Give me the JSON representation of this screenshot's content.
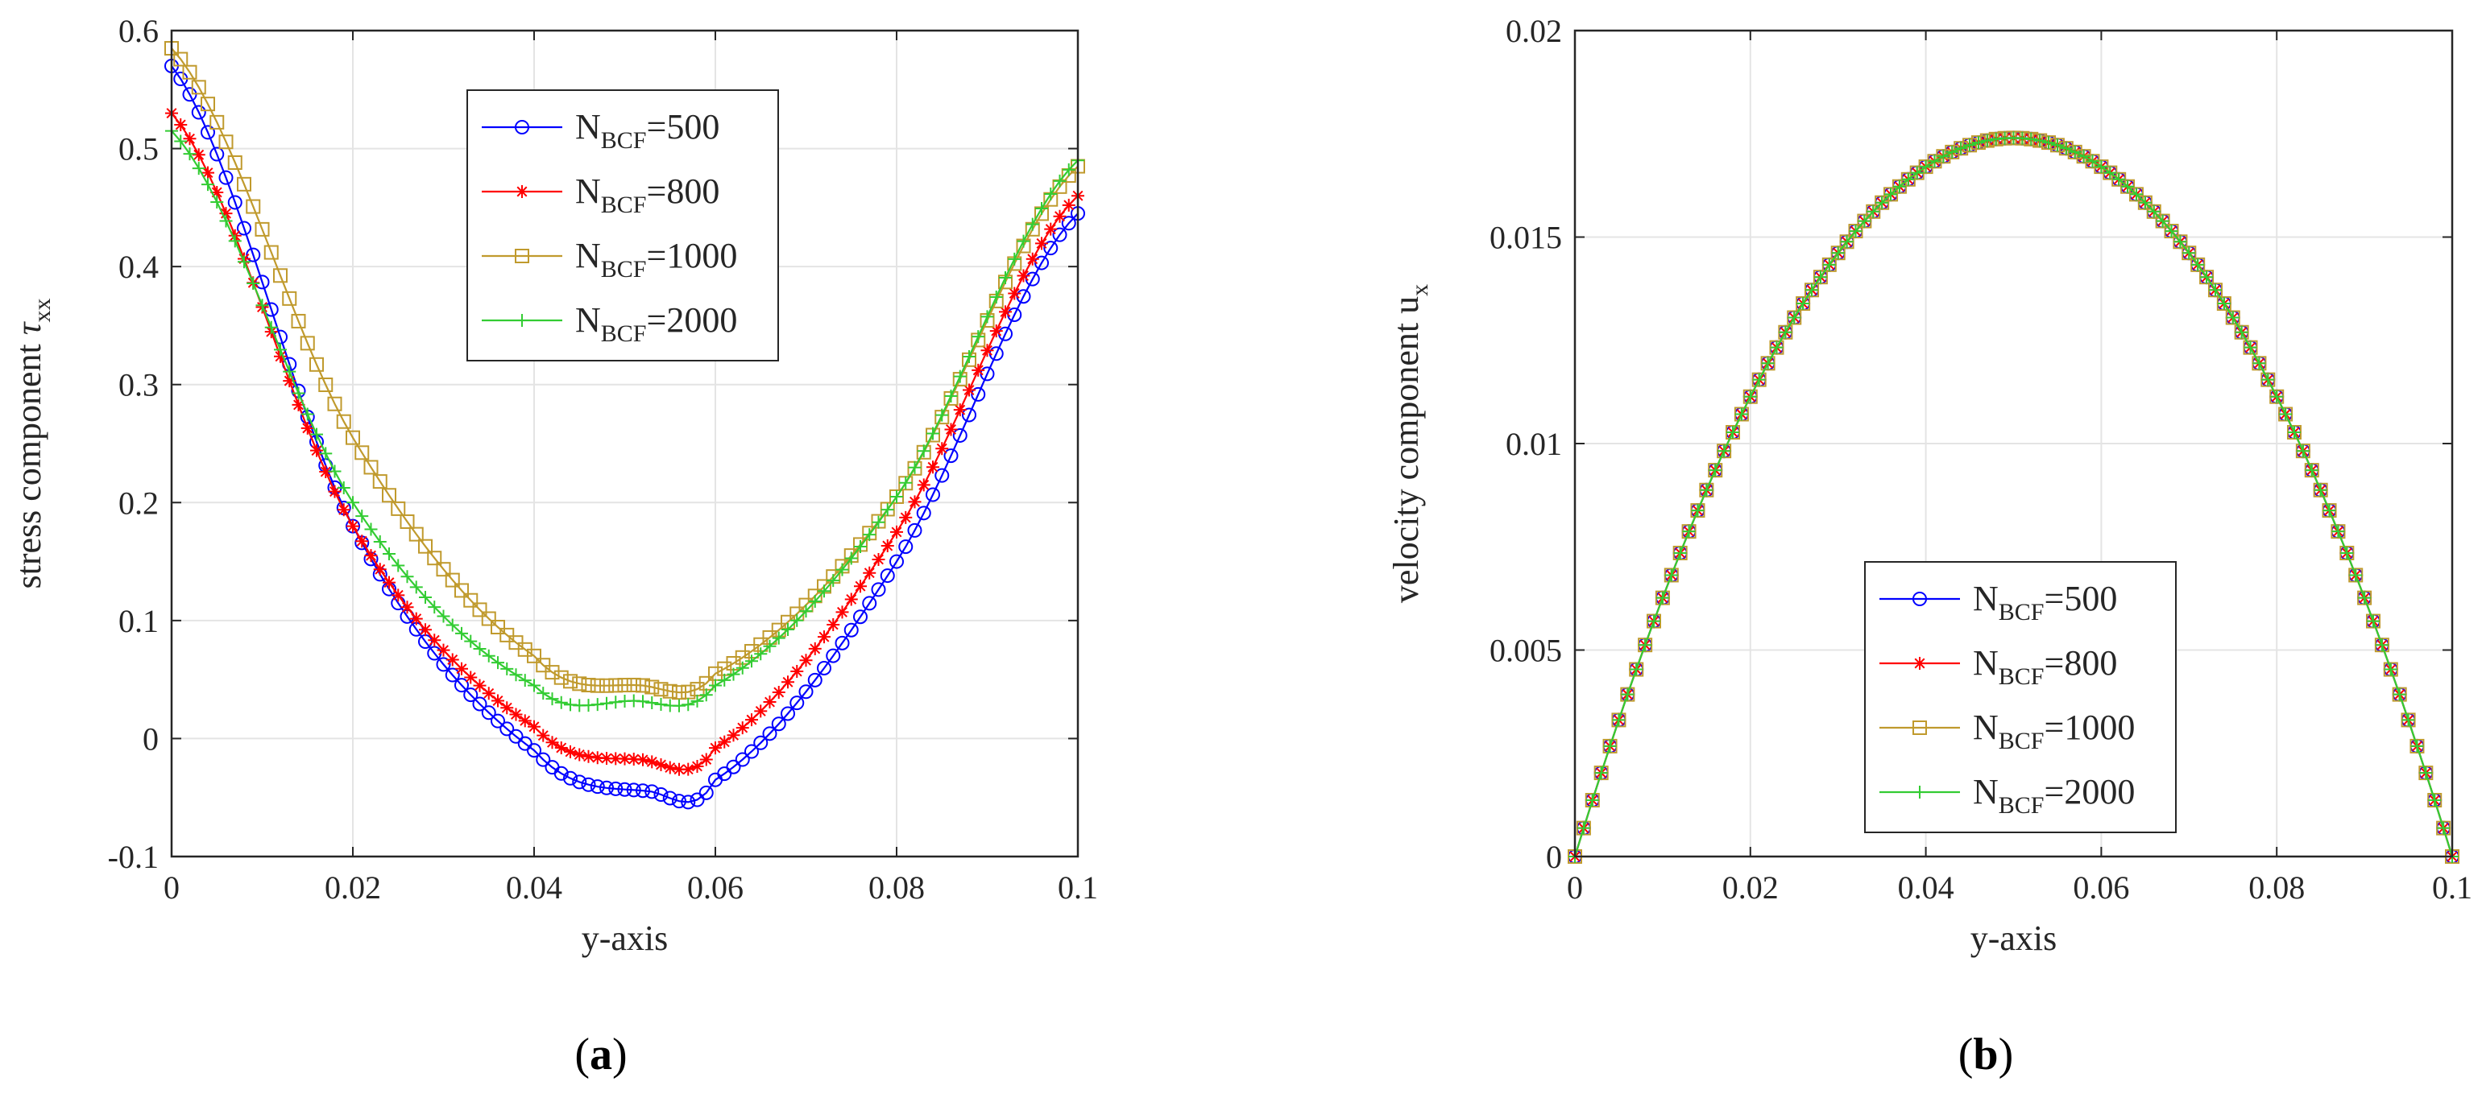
{
  "chart_data": [
    {
      "type": "line",
      "panel_label": "(a)",
      "xlabel": "y-axis",
      "ylabel": "stress component ",
      "ylabel_symbol": "τ",
      "ylabel_subscript": "xx",
      "xlim": [
        0,
        0.1
      ],
      "ylim": [
        -0.1,
        0.6
      ],
      "xticks": [
        0,
        0.02,
        0.04,
        0.06,
        0.08,
        0.1
      ],
      "xtick_labels": [
        "0",
        "0.02",
        "0.04",
        "0.06",
        "0.08",
        "0.1"
      ],
      "yticks": [
        -0.1,
        0,
        0.1,
        0.2,
        0.3,
        0.4,
        0.5,
        0.6
      ],
      "ytick_labels": [
        "-0.1",
        "0",
        "0.1",
        "0.2",
        "0.3",
        "0.4",
        "0.5",
        "0.6"
      ],
      "grid": true,
      "legend_position": "top-center",
      "series": [
        {
          "name": "N",
          "name_sub": "BCF",
          "name_suffix": "=500",
          "color": "#0000ff",
          "marker": "circle",
          "ymin_at": 0.053,
          "values_at": {
            "0": 0.57,
            "0.02": 0.18,
            "0.04": -0.01,
            "0.053": -0.045,
            "0.06": -0.035,
            "0.08": 0.15,
            "0.1": 0.445
          }
        },
        {
          "name": "N",
          "name_sub": "BCF",
          "name_suffix": "=800",
          "color": "#ff0000",
          "marker": "asterisk",
          "ymin_at": 0.052,
          "values_at": {
            "0": 0.53,
            "0.02": 0.18,
            "0.04": 0.01,
            "0.052": -0.018,
            "0.06": -0.008,
            "0.08": 0.175,
            "0.1": 0.46
          }
        },
        {
          "name": "N",
          "name_sub": "BCF",
          "name_suffix": "=1000",
          "color": "#c09a2d",
          "marker": "square",
          "ymin_at": 0.052,
          "values_at": {
            "0": 0.585,
            "0.02": 0.255,
            "0.04": 0.07,
            "0.052": 0.045,
            "0.06": 0.055,
            "0.08": 0.205,
            "0.1": 0.485
          }
        },
        {
          "name": "N",
          "name_sub": "BCF",
          "name_suffix": "=2000",
          "color": "#33cc33",
          "marker": "plus",
          "ymin_at": 0.051,
          "values_at": {
            "0": 0.515,
            "0.02": 0.2,
            "0.04": 0.045,
            "0.051": 0.032,
            "0.06": 0.045,
            "0.08": 0.205,
            "0.1": 0.49
          }
        }
      ]
    },
    {
      "type": "line",
      "panel_label": "(b)",
      "xlabel": "y-axis",
      "ylabel": "velocity component u",
      "ylabel_subscript": "x",
      "xlim": [
        0,
        0.1
      ],
      "ylim": [
        0,
        0.02
      ],
      "xticks": [
        0,
        0.02,
        0.04,
        0.06,
        0.08,
        0.1
      ],
      "xtick_labels": [
        "0",
        "0.02",
        "0.04",
        "0.06",
        "0.08",
        "0.1"
      ],
      "yticks": [
        0,
        0.005,
        0.01,
        0.015,
        0.02
      ],
      "ytick_labels": [
        "0",
        "0.005",
        "0.01",
        "0.015",
        "0.02"
      ],
      "grid": true,
      "legend_position": "bottom-center",
      "profile": "parabolic",
      "peak_x": 0.05,
      "peak_y": 0.0174,
      "series": [
        {
          "name": "N",
          "name_sub": "BCF",
          "name_suffix": "=500",
          "color": "#0000ff",
          "marker": "circle"
        },
        {
          "name": "N",
          "name_sub": "BCF",
          "name_suffix": "=800",
          "color": "#ff0000",
          "marker": "asterisk"
        },
        {
          "name": "N",
          "name_sub": "BCF",
          "name_suffix": "=1000",
          "color": "#c09a2d",
          "marker": "square"
        },
        {
          "name": "N",
          "name_sub": "BCF",
          "name_suffix": "=2000",
          "color": "#33cc33",
          "marker": "plus"
        }
      ]
    }
  ]
}
